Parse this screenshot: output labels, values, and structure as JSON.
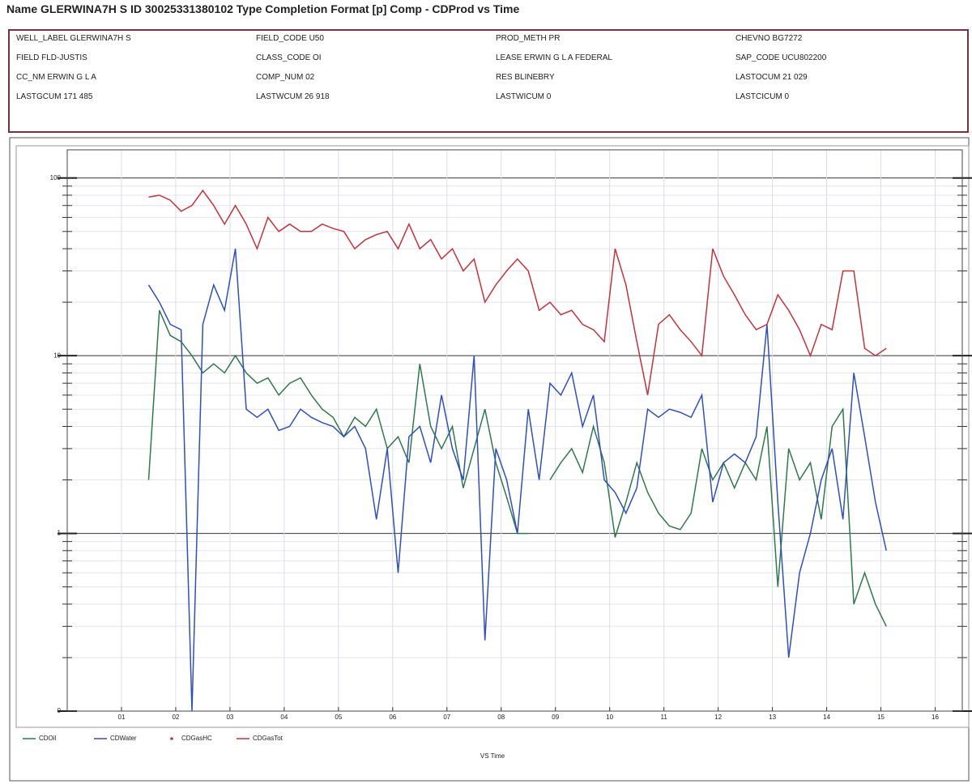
{
  "header": {
    "title": "Name  GLERWINA7H S  ID  30025331380102  Type  Completion  Format  [p] Comp - CDProd vs Time",
    "fields": [
      "WELL_LABEL GLERWINA7H S",
      "FIELD_CODE U50",
      "PROD_METH PR",
      "CHEVNO BG7272",
      "FIELD FLD-JUSTIS",
      "CLASS_CODE OI",
      "LEASE ERWIN G L  A  FEDERAL",
      "SAP_CODE UCU802200",
      "CC_NM ERWIN  G  L  A",
      "COMP_NUM 02",
      "RES BLINEBRY",
      "LASTOCUM 21 029",
      "LASTGCUM 171 485",
      "LASTWCUM 26 918",
      "LASTWICUM 0",
      "LASTCICUM 0"
    ]
  },
  "chart_data": {
    "type": "line",
    "xlabel": "VS Time",
    "log_y": true,
    "grid": true,
    "xlim": [
      0,
      16.5
    ],
    "xticks": [
      {
        "value": 1,
        "label": "01"
      },
      {
        "value": 2,
        "label": "02"
      },
      {
        "value": 3,
        "label": "03"
      },
      {
        "value": 4,
        "label": "04"
      },
      {
        "value": 5,
        "label": "05"
      },
      {
        "value": 6,
        "label": "06"
      },
      {
        "value": 7,
        "label": "07"
      },
      {
        "value": 8,
        "label": "08"
      },
      {
        "value": 9,
        "label": "09"
      },
      10,
      11,
      12,
      13,
      14,
      15,
      16
    ],
    "ylim": [
      0.1,
      144
    ],
    "yticks": [
      100,
      10,
      1,
      {
        "value": 0.1,
        "label": "0"
      }
    ],
    "x": [
      1.5,
      1.7,
      1.9,
      2.1,
      2.3,
      2.5,
      2.7,
      2.9,
      3.1,
      3.3,
      3.5,
      3.7,
      3.9,
      4.1,
      4.3,
      4.5,
      4.7,
      4.9,
      5.1,
      5.3,
      5.5,
      5.7,
      5.9,
      6.1,
      6.3,
      6.5,
      6.7,
      6.9,
      7.1,
      7.3,
      7.5,
      7.7,
      7.9,
      8.1,
      8.3,
      8.5,
      8.7,
      8.9,
      9.1,
      9.3,
      9.5,
      9.7,
      9.9,
      10.1,
      10.3,
      10.5,
      10.7,
      10.9,
      11.1,
      11.3,
      11.5,
      11.7,
      11.9,
      12.1,
      12.3,
      12.5,
      12.7,
      12.9,
      13.1,
      13.3,
      13.5,
      13.7,
      13.9,
      14.1,
      14.3,
      14.5,
      14.7,
      14.9,
      15.1
    ],
    "series": [
      {
        "name": "CDOil",
        "color": "#2f7a4c",
        "values": [
          2,
          18,
          13,
          12,
          10,
          8,
          9,
          8,
          10,
          8,
          7,
          7.5,
          6,
          7,
          7.5,
          6,
          5,
          4.5,
          3.5,
          4.5,
          4,
          5,
          3,
          3.5,
          2.5,
          9,
          4,
          3,
          4,
          1.8,
          3,
          5,
          2.5,
          1.6,
          1,
          1,
          null,
          2,
          2.5,
          3,
          2.2,
          4,
          2.5,
          0.95,
          1.5,
          2.5,
          1.7,
          1.3,
          1.1,
          1.05,
          1.3,
          3,
          2,
          2.5,
          1.8,
          2.5,
          2,
          4,
          0.5,
          3,
          2,
          2.5,
          1.2,
          4,
          5,
          0.4,
          0.6,
          0.4,
          0.3
        ]
      },
      {
        "name": "CDWater",
        "color": "#2f4fc4",
        "values": [
          25,
          20,
          15,
          14,
          0.1,
          15,
          25,
          18,
          40,
          5,
          4.5,
          5,
          3.8,
          4,
          5,
          4.5,
          4.2,
          4,
          3.5,
          4,
          3,
          1.2,
          3,
          0.6,
          3.5,
          4,
          2.5,
          6,
          3,
          2,
          10,
          0.25,
          3,
          2,
          1,
          5,
          2,
          7,
          6,
          8,
          4,
          6,
          2,
          1.7,
          1.3,
          1.8,
          5,
          4.5,
          5,
          4.8,
          4.5,
          6,
          1.5,
          2.5,
          2.8,
          2.5,
          3.5,
          15,
          1.5,
          0.2,
          0.6,
          1,
          2,
          3,
          1.2,
          8,
          3.5,
          1.5,
          0.8
        ]
      },
      {
        "name": "CDGasHC",
        "color": "#c8323c",
        "marker": "dot",
        "values": [
          null,
          null,
          null,
          null,
          null,
          null,
          null,
          null,
          null,
          null,
          null,
          null,
          null,
          null,
          null,
          null,
          null,
          null,
          null,
          null,
          null,
          null,
          null,
          null,
          null,
          null,
          null,
          null,
          null,
          null,
          null,
          null,
          null,
          null,
          null,
          null,
          null,
          null,
          null,
          null,
          null,
          null,
          null,
          null,
          null,
          null,
          null,
          null,
          null,
          null,
          null,
          null,
          null,
          null,
          null,
          null,
          null,
          null,
          null,
          null,
          null,
          null,
          null,
          null,
          null,
          null,
          null,
          null,
          null
        ]
      },
      {
        "name": "CDGasTot",
        "color": "#c8323c",
        "values": [
          78,
          80,
          75,
          65,
          70,
          85,
          70,
          55,
          70,
          55,
          40,
          60,
          50,
          55,
          50,
          50,
          55,
          52,
          50,
          40,
          45,
          48,
          50,
          40,
          55,
          40,
          45,
          35,
          40,
          30,
          35,
          20,
          25,
          30,
          35,
          30,
          18,
          20,
          17,
          18,
          15,
          14,
          12,
          40,
          25,
          12,
          6,
          15,
          17,
          14,
          12,
          10,
          40,
          28,
          22,
          17,
          14,
          15,
          22,
          18,
          14,
          10,
          15,
          14,
          30,
          30,
          11,
          10,
          11
        ]
      }
    ]
  }
}
